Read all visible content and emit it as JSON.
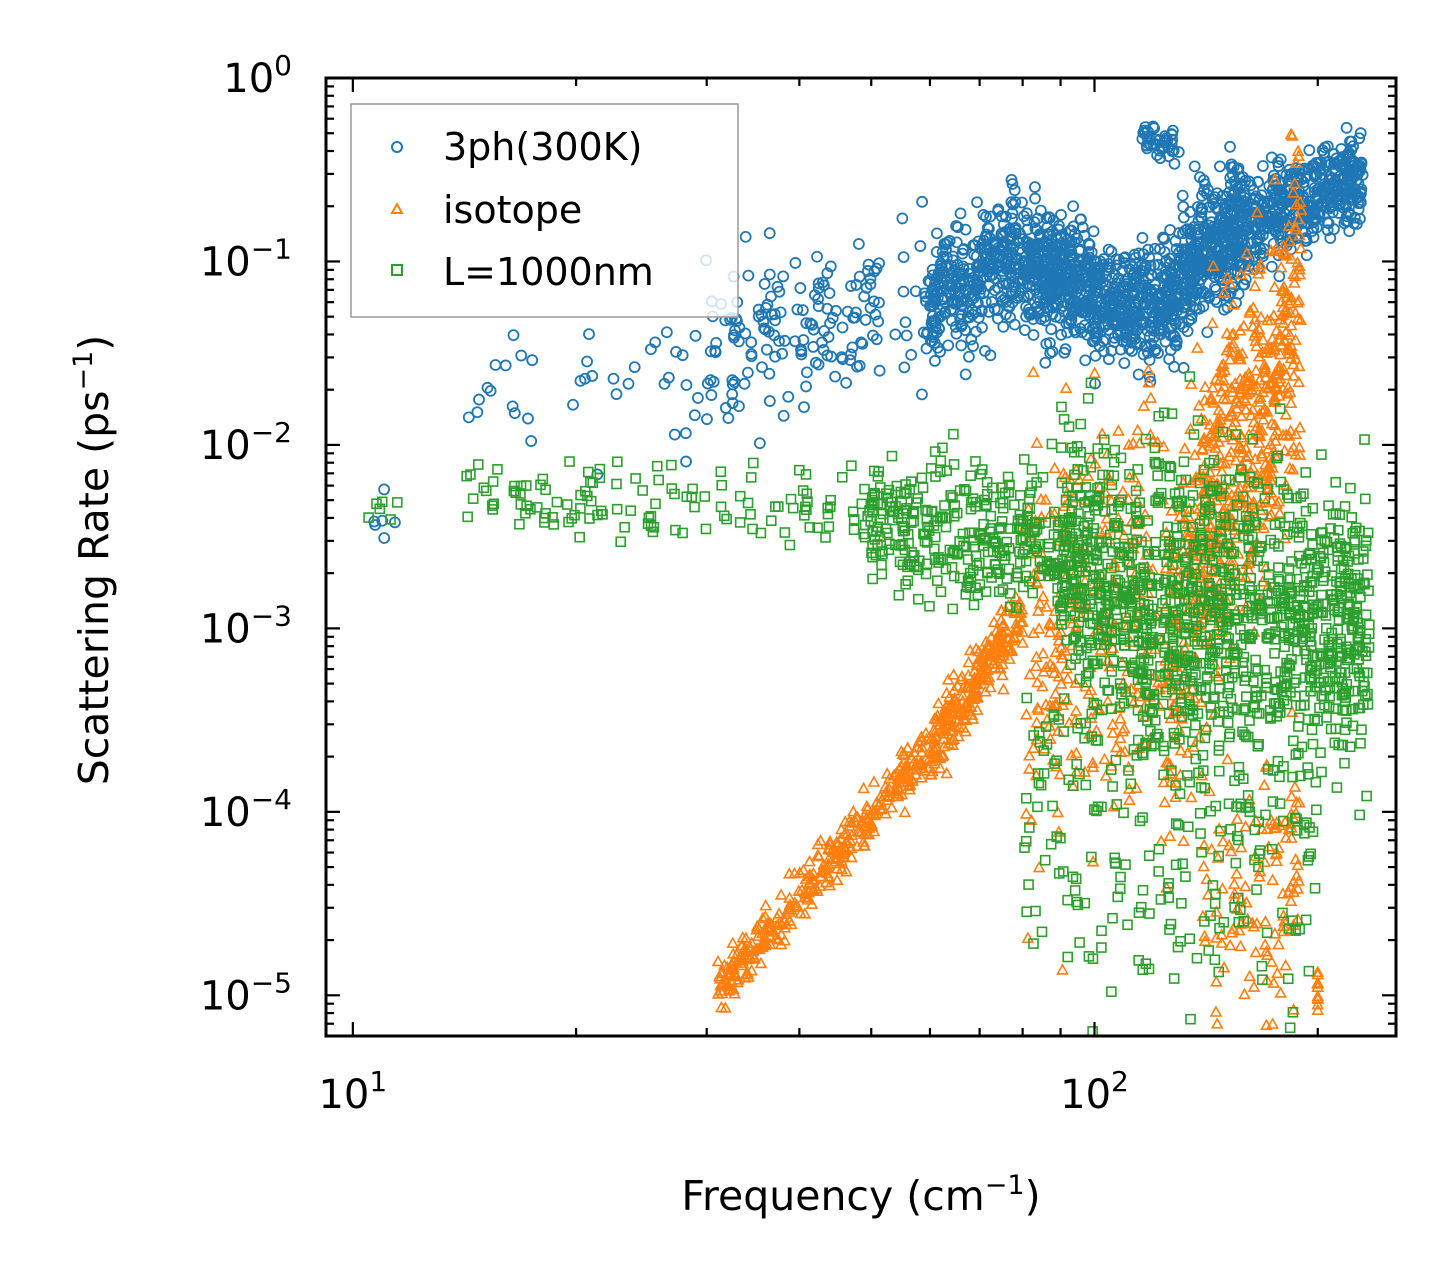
{
  "chart_data": {
    "type": "scatter",
    "xscale": "log",
    "yscale": "log",
    "xlabel": "Frequency (cm",
    "xlabel_sup": "−1",
    "xlabel_close": ")",
    "ylabel": "Scattering Rate (ps",
    "ylabel_sup": "−1",
    "ylabel_close": ")",
    "xlim": [
      9.2,
      255
    ],
    "ylim": [
      6e-06,
      1.0
    ],
    "x_ticks": [
      {
        "value": 10,
        "base": "10",
        "exp": "1"
      },
      {
        "value": 100,
        "base": "10",
        "exp": "2"
      }
    ],
    "y_ticks": [
      {
        "value": 1,
        "base": "10",
        "exp": "0"
      },
      {
        "value": 0.1,
        "base": "10",
        "exp": "−1"
      },
      {
        "value": 0.01,
        "base": "10",
        "exp": "−2"
      },
      {
        "value": 0.001,
        "base": "10",
        "exp": "−3"
      },
      {
        "value": 0.0001,
        "base": "10",
        "exp": "−4"
      },
      {
        "value": 1e-05,
        "base": "10",
        "exp": "−5"
      }
    ],
    "legend_position": "top-left",
    "series": [
      {
        "name": "3ph(300K)",
        "marker": "circle",
        "color": "#1f77b4",
        "bands": [
          [
            10.5,
            0.0037,
            11.5,
            0.0035,
            0.08,
            6
          ],
          [
            14,
            0.018,
            30,
            0.03,
            0.25,
            40
          ],
          [
            30,
            0.035,
            60,
            0.07,
            0.22,
            170
          ],
          [
            60,
            0.06,
            80,
            0.11,
            0.16,
            330
          ],
          [
            80,
            0.1,
            100,
            0.07,
            0.16,
            380
          ],
          [
            100,
            0.06,
            130,
            0.06,
            0.15,
            380
          ],
          [
            130,
            0.08,
            160,
            0.17,
            0.18,
            380
          ],
          [
            160,
            0.16,
            230,
            0.3,
            0.12,
            420
          ],
          [
            115,
            0.48,
            130,
            0.4,
            0.05,
            40
          ]
        ]
      },
      {
        "name": "isotope",
        "marker": "triangle",
        "color": "#ff7f0e",
        "bands": [
          [
            31,
            1.1e-05,
            60,
            0.00022,
            0.07,
            340
          ],
          [
            60,
            0.00022,
            80,
            0.0012,
            0.09,
            260
          ],
          [
            80,
            0.001,
            125,
            0.0012,
            0.6,
            300
          ],
          [
            125,
            0.0003,
            140,
            0.004,
            0.5,
            150
          ],
          [
            140,
            0.004,
            190,
            0.05,
            0.45,
            520
          ],
          [
            140,
            3e-05,
            190,
            5e-05,
            0.4,
            120
          ],
          [
            200,
            1.1e-05,
            200,
            1.1e-05,
            0.05,
            10
          ]
        ]
      },
      {
        "name": "L=1000nm",
        "marker": "square",
        "color": "#2ca02c",
        "bands": [
          [
            10.5,
            0.0044,
            11.5,
            0.0046,
            0.05,
            6
          ],
          [
            14,
            0.0052,
            50,
            0.0044,
            0.12,
            130
          ],
          [
            50,
            0.004,
            90,
            0.0028,
            0.18,
            330
          ],
          [
            90,
            0.0025,
            120,
            0.0012,
            0.38,
            400
          ],
          [
            120,
            0.0015,
            180,
            0.0008,
            0.45,
            500
          ],
          [
            180,
            0.001,
            235,
            0.001,
            0.35,
            380
          ],
          [
            80,
            0.0001,
            200,
            4e-05,
            0.5,
            220
          ]
        ]
      }
    ]
  }
}
